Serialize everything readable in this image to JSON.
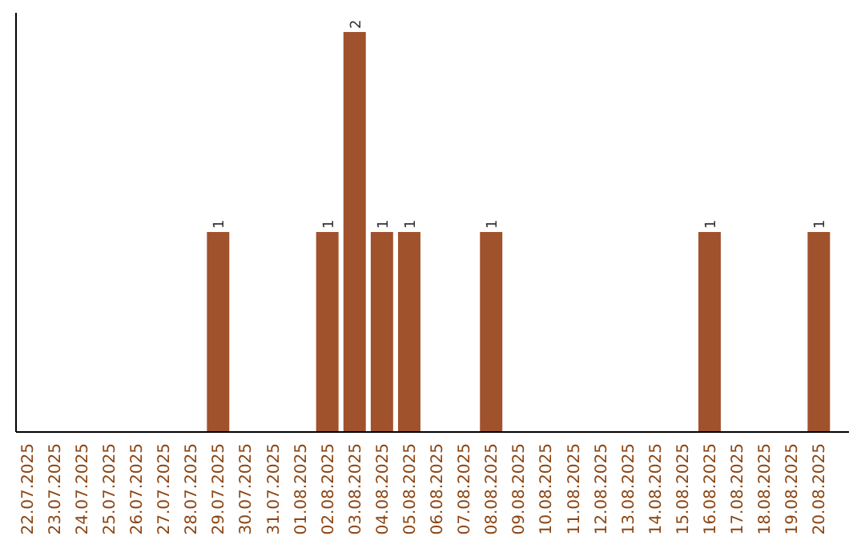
{
  "chart_data": {
    "type": "bar",
    "categories": [
      "22.07.2025",
      "23.07.2025",
      "24.07.2025",
      "25.07.2025",
      "26.07.2025",
      "27.07.2025",
      "28.07.2025",
      "29.07.2025",
      "30.07.2025",
      "31.07.2025",
      "01.08.2025",
      "02.08.2025",
      "03.08.2025",
      "04.08.2025",
      "05.08.2025",
      "06.08.2025",
      "07.08.2025",
      "08.08.2025",
      "09.08.2025",
      "10.08.2025",
      "11.08.2025",
      "12.08.2025",
      "13.08.2025",
      "14.08.2025",
      "15.08.2025",
      "16.08.2025",
      "17.08.2025",
      "18.08.2025",
      "19.08.2025",
      "20.08.2025"
    ],
    "values": [
      0,
      0,
      0,
      0,
      0,
      0,
      0,
      1,
      0,
      0,
      0,
      1,
      2,
      1,
      1,
      0,
      0,
      1,
      0,
      0,
      0,
      0,
      0,
      0,
      0,
      1,
      0,
      0,
      0,
      1
    ],
    "value_labels": [
      null,
      null,
      null,
      null,
      null,
      null,
      null,
      "1",
      null,
      null,
      null,
      "1",
      "2",
      "1",
      "1",
      null,
      null,
      "1",
      null,
      null,
      null,
      null,
      null,
      null,
      null,
      "1",
      null,
      null,
      null,
      "1"
    ],
    "color": "#a0522d"
  }
}
